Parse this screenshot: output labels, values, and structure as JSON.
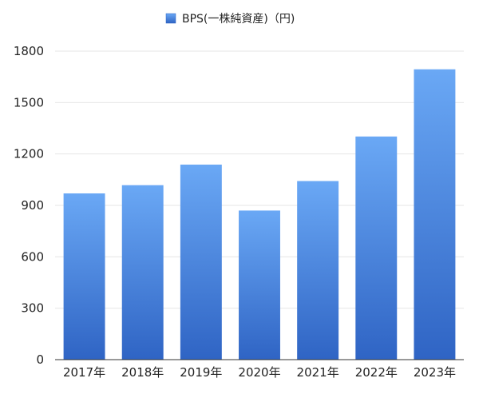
{
  "chart_data": {
    "type": "bar",
    "title": "",
    "xlabel": "",
    "ylabel": "",
    "categories": [
      "2017年",
      "2018年",
      "2019年",
      "2020年",
      "2021年",
      "2022年",
      "2023年"
    ],
    "series": [
      {
        "name": "BPS(一株純資産)（円)",
        "values": [
          970,
          1018,
          1138,
          870,
          1042,
          1302,
          1694
        ]
      }
    ],
    "ylim": [
      0,
      1800
    ],
    "yticks": [
      0,
      300,
      600,
      900,
      1200,
      1500,
      1800
    ],
    "grid": true,
    "legend_position": "top-center",
    "colors": {
      "bar_top": "#6aa8f5",
      "bar_bottom": "#2f64c4",
      "grid": "#e6e6e6",
      "axis": "#333333"
    }
  }
}
